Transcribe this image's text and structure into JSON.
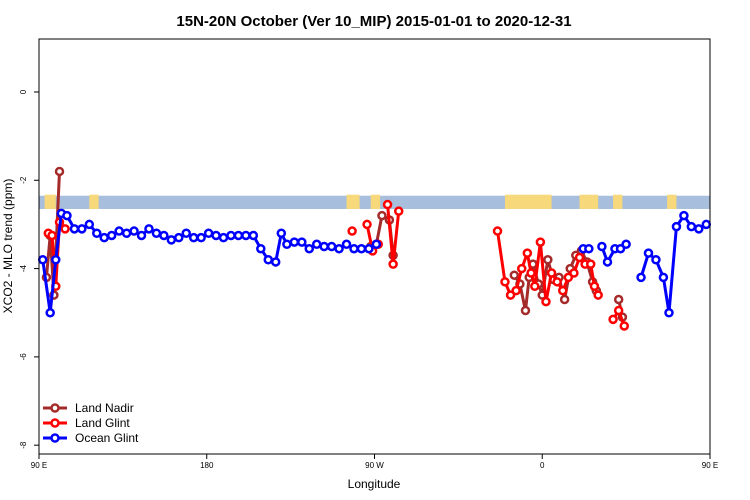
{
  "chart_data": {
    "type": "line",
    "title": "15N-20N October (Ver 10_MIP)   2015-01-01 to 2020-12-31",
    "xlabel": "Longitude",
    "ylabel": "XCO2 - MLO trend (ppm)",
    "xlim": [
      0,
      360
    ],
    "ylim": [
      -8.2,
      1.2
    ],
    "x_ticks": [
      {
        "value": 0,
        "label": "90 E"
      },
      {
        "value": 90,
        "label": "180"
      },
      {
        "value": 180,
        "label": "90 W"
      },
      {
        "value": 270,
        "label": "0"
      },
      {
        "value": 360,
        "label": "90 E"
      },
      {
        "value": 450,
        "label": "180"
      }
    ],
    "y_ticks": [
      0,
      -2,
      -4,
      -6,
      -8
    ],
    "grid": false,
    "legend_position": "bottom-left",
    "land_band": {
      "y_top": -2.35,
      "y_bottom": -2.65,
      "ocean_color": "#a7bedc",
      "land_color": "#f7d87a"
    },
    "land_spans": [
      [
        3,
        9
      ],
      [
        27,
        32
      ],
      [
        165,
        172
      ],
      [
        178,
        183
      ],
      [
        250,
        275
      ],
      [
        290,
        300
      ],
      [
        308,
        313
      ],
      [
        337,
        342
      ],
      [
        385,
        390
      ],
      [
        394,
        400
      ]
    ],
    "series": [
      {
        "name": "Land Nadir",
        "color": "#a52a2a",
        "segments": [
          [
            [
              4,
              -4.2
            ],
            [
              6,
              -3.25
            ],
            [
              8,
              -4.6
            ],
            [
              11,
              -1.8
            ]
          ],
          [
            [
              178,
              -3.5
            ],
            [
              181,
              -3.45
            ],
            [
              184,
              -2.8
            ]
          ],
          [
            [
              188,
              -2.9
            ],
            [
              190,
              -3.7
            ]
          ],
          [
            [
              255,
              -4.15
            ],
            [
              258,
              -4.35
            ],
            [
              261,
              -4.95
            ],
            [
              263,
              -4.2
            ],
            [
              265,
              -3.9
            ],
            [
              268,
              -4.35
            ],
            [
              270,
              -4.6
            ],
            [
              273,
              -3.8
            ],
            [
              276,
              -4.25
            ],
            [
              279,
              -4.2
            ],
            [
              282,
              -4.7
            ],
            [
              285,
              -4.0
            ],
            [
              288,
              -3.7
            ],
            [
              291,
              -3.6
            ],
            [
              294,
              -3.85
            ],
            [
              297,
              -4.3
            ],
            [
              299,
              -4.5
            ]
          ],
          [
            [
              311,
              -4.7
            ],
            [
              313,
              -5.1
            ]
          ],
          [
            [
              363,
              -4.2
            ],
            [
              365,
              -3.3
            ],
            [
              368,
              -4.6
            ],
            [
              371,
              -1.8
            ]
          ]
        ]
      },
      {
        "name": "Land Glint",
        "color": "#ff0000",
        "segments": [
          [
            [
              5,
              -3.2
            ],
            [
              7,
              -3.25
            ],
            [
              9,
              -4.4
            ],
            [
              11,
              -2.95
            ],
            [
              14,
              -3.1
            ]
          ],
          [
            [
              168,
              -3.15
            ]
          ],
          [
            [
              176,
              -3.0
            ],
            [
              179,
              -3.6
            ],
            [
              182,
              -3.45
            ]
          ],
          [
            [
              187,
              -2.55
            ],
            [
              190,
              -3.9
            ],
            [
              193,
              -2.7
            ]
          ],
          [
            [
              246,
              -3.15
            ],
            [
              250,
              -4.3
            ],
            [
              253,
              -4.6
            ],
            [
              256,
              -4.5
            ],
            [
              259,
              -4.0
            ],
            [
              262,
              -3.65
            ],
            [
              264,
              -4.1
            ],
            [
              266,
              -4.4
            ],
            [
              269,
              -3.4
            ],
            [
              272,
              -4.75
            ],
            [
              275,
              -4.1
            ],
            [
              278,
              -4.3
            ],
            [
              281,
              -4.5
            ],
            [
              284,
              -4.2
            ],
            [
              287,
              -4.1
            ],
            [
              290,
              -3.75
            ],
            [
              293,
              -3.9
            ],
            [
              296,
              -3.9
            ],
            [
              298,
              -4.4
            ],
            [
              300,
              -4.6
            ]
          ],
          [
            [
              308,
              -5.15
            ],
            [
              311,
              -4.95
            ],
            [
              314,
              -5.3
            ]
          ],
          [
            [
              364,
              -3.25
            ],
            [
              366,
              -3.35
            ],
            [
              369,
              -4.4
            ],
            [
              371,
              -2.95
            ],
            [
              374,
              -3.1
            ]
          ],
          [
            [
              382,
              -3.2
            ]
          ]
        ]
      },
      {
        "name": "Ocean Glint",
        "color": "#0000ff",
        "segments": [
          [
            [
              2,
              -3.8
            ],
            [
              6,
              -5.0
            ],
            [
              9,
              -3.8
            ],
            [
              12,
              -2.75
            ],
            [
              15,
              -2.8
            ],
            [
              19,
              -3.1
            ],
            [
              23,
              -3.1
            ],
            [
              27,
              -3.0
            ],
            [
              31,
              -3.2
            ],
            [
              35,
              -3.3
            ],
            [
              39,
              -3.25
            ],
            [
              43,
              -3.15
            ],
            [
              47,
              -3.2
            ],
            [
              51,
              -3.15
            ],
            [
              55,
              -3.25
            ],
            [
              59,
              -3.1
            ],
            [
              63,
              -3.2
            ],
            [
              67,
              -3.25
            ],
            [
              71,
              -3.35
            ],
            [
              75,
              -3.3
            ],
            [
              79,
              -3.2
            ],
            [
              83,
              -3.3
            ],
            [
              87,
              -3.3
            ],
            [
              91,
              -3.2
            ],
            [
              95,
              -3.25
            ],
            [
              99,
              -3.3
            ],
            [
              103,
              -3.25
            ],
            [
              107,
              -3.25
            ],
            [
              111,
              -3.25
            ],
            [
              115,
              -3.25
            ],
            [
              119,
              -3.55
            ],
            [
              123,
              -3.8
            ],
            [
              127,
              -3.85
            ],
            [
              130,
              -3.2
            ],
            [
              133,
              -3.45
            ],
            [
              137,
              -3.4
            ],
            [
              141,
              -3.4
            ],
            [
              145,
              -3.55
            ],
            [
              149,
              -3.45
            ],
            [
              153,
              -3.5
            ],
            [
              157,
              -3.5
            ],
            [
              161,
              -3.55
            ],
            [
              165,
              -3.45
            ],
            [
              169,
              -3.55
            ],
            [
              173,
              -3.55
            ],
            [
              177,
              -3.55
            ],
            [
              181,
              -3.45
            ]
          ],
          [
            [
              292,
              -3.55
            ],
            [
              295,
              -3.55
            ]
          ],
          [
            [
              302,
              -3.5
            ],
            [
              305,
              -3.85
            ],
            [
              309,
              -3.55
            ],
            [
              312,
              -3.55
            ],
            [
              315,
              -3.45
            ]
          ],
          [
            [
              323,
              -4.2
            ],
            [
              327,
              -3.65
            ],
            [
              331,
              -3.8
            ],
            [
              335,
              -4.2
            ],
            [
              338,
              -5.0
            ],
            [
              342,
              -3.05
            ],
            [
              346,
              -2.8
            ],
            [
              350,
              -3.05
            ],
            [
              354,
              -3.1
            ],
            [
              358,
              -3.0
            ],
            [
              362,
              -3.2
            ],
            [
              366,
              -3.3
            ],
            [
              370,
              -3.25
            ],
            [
              374,
              -3.2
            ],
            [
              378,
              -3.25
            ],
            [
              382,
              -3.2
            ],
            [
              386,
              -3.25
            ],
            [
              390,
              -3.1
            ],
            [
              394,
              -3.2
            ],
            [
              397,
              -3.25
            ]
          ]
        ]
      }
    ]
  }
}
